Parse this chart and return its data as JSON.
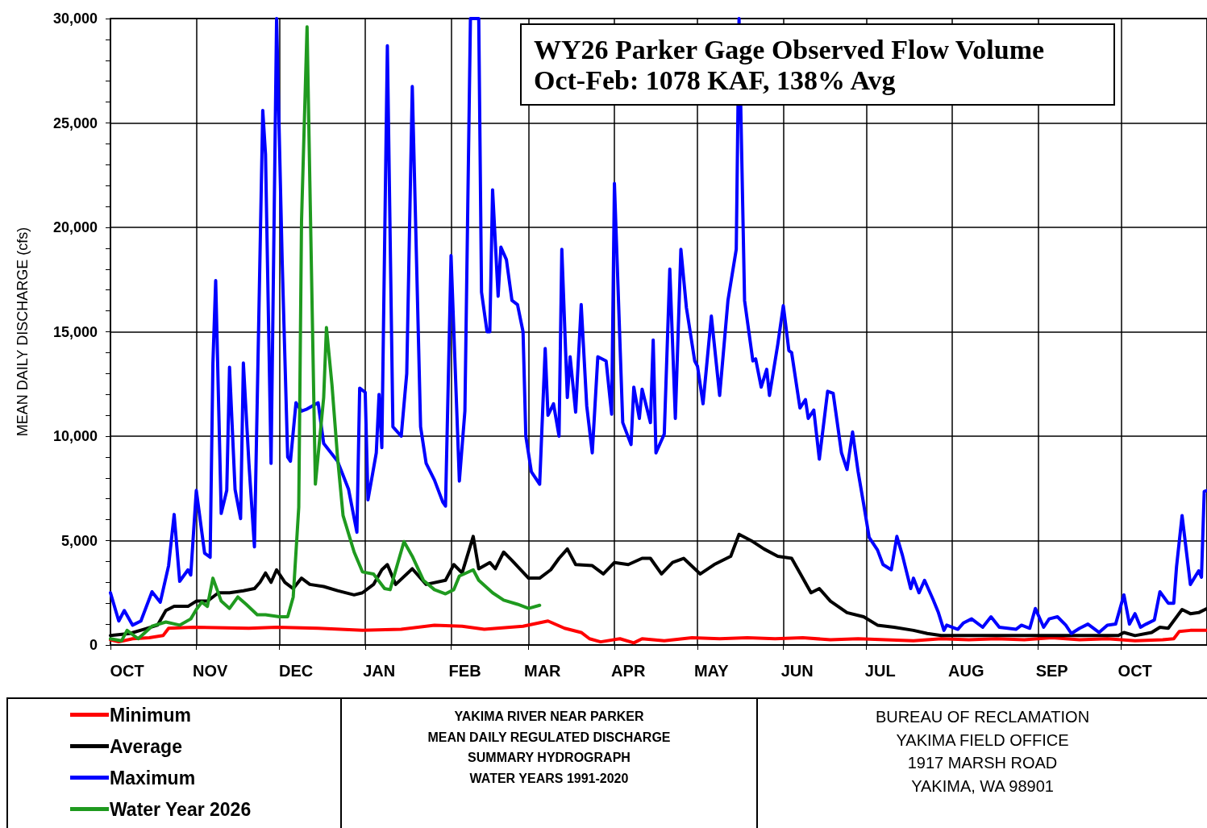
{
  "chart_data": {
    "type": "line",
    "title": "WY26 Parker Gage Observed Flow Volume",
    "subtitle": "Oct-Feb: 1078 KAF, 138% Avg",
    "ylabel": "MEAN DAILY DISCHARGE (cfs)",
    "annotations": [
      "YAKIMA RIVER NEAR PARKER\nMEAN DAILY REGULATED DISCHARGE\nSUMMARY HYDROGRAPH\nWATER YEARS 1991-2020",
      "BUREAU OF RECLAMATION\nYAKIMA FIELD OFFICE\n1917 MARSH ROAD\nYAKIMA, WA  98901"
    ],
    "xlim": [
      "2025-10-01",
      "2026-11-01"
    ],
    "xticks": [
      {
        "value": "2025-10-01",
        "label": null
      },
      {
        "value": "2025-10-07",
        "label": "OCT"
      },
      {
        "value": "2025-11-01",
        "label": null
      },
      {
        "value": "2025-11-06",
        "label": "NOV"
      },
      {
        "value": "2025-12-01",
        "label": null
      },
      {
        "value": "2025-12-07",
        "label": "DEC"
      },
      {
        "value": "2026-01-01",
        "label": null
      },
      {
        "value": "2026-01-06",
        "label": "JAN"
      },
      {
        "value": "2026-02-01",
        "label": null
      },
      {
        "value": "2026-02-06",
        "label": "FEB"
      },
      {
        "value": "2026-03-01",
        "label": null
      },
      {
        "value": "2026-03-06",
        "label": "MAR"
      },
      {
        "value": "2026-04-01",
        "label": null
      },
      {
        "value": "2026-04-06",
        "label": "APR"
      },
      {
        "value": "2026-05-01",
        "label": null
      },
      {
        "value": "2026-05-06",
        "label": "MAY"
      },
      {
        "value": "2026-06-01",
        "label": null
      },
      {
        "value": "2026-06-06",
        "label": "JUN"
      },
      {
        "value": "2026-07-01",
        "label": null
      },
      {
        "value": "2026-07-06",
        "label": "JUL"
      },
      {
        "value": "2026-08-01",
        "label": null
      },
      {
        "value": "2026-08-06",
        "label": "AUG"
      },
      {
        "value": "2026-09-01",
        "label": null
      },
      {
        "value": "2026-09-06",
        "label": "SEP"
      },
      {
        "value": "2026-10-01",
        "label": null
      },
      {
        "value": "2026-10-06",
        "label": "OCT"
      },
      {
        "value": "2026-11-01",
        "label": null
      }
    ],
    "ylim": [
      0,
      30000
    ],
    "yticks": [
      0,
      {
        "value": 1000,
        "label": null
      },
      {
        "value": 2000,
        "label": null
      },
      {
        "value": 3000,
        "label": null
      },
      {
        "value": 4000,
        "label": null
      },
      {
        "value": 5000,
        "label": "5,000"
      },
      {
        "value": 6000,
        "label": null
      },
      {
        "value": 7000,
        "label": null
      },
      {
        "value": 8000,
        "label": null
      },
      {
        "value": 9000,
        "label": null
      },
      {
        "value": 10000,
        "label": "10,000"
      },
      {
        "value": 11000,
        "label": null
      },
      {
        "value": 12000,
        "label": null
      },
      {
        "value": 13000,
        "label": null
      },
      {
        "value": 14000,
        "label": null
      },
      {
        "value": 15000,
        "label": "15,000"
      },
      {
        "value": 16000,
        "label": null
      },
      {
        "value": 17000,
        "label": null
      },
      {
        "value": 18000,
        "label": null
      },
      {
        "value": 19000,
        "label": null
      },
      {
        "value": 20000,
        "label": "20,000"
      },
      {
        "value": 21000,
        "label": null
      },
      {
        "value": 22000,
        "label": null
      },
      {
        "value": 23000,
        "label": null
      },
      {
        "value": 24000,
        "label": null
      },
      {
        "value": 25000,
        "label": "25,000"
      },
      {
        "value": 26000,
        "label": null
      },
      {
        "value": 27000,
        "label": null
      },
      {
        "value": 28000,
        "label": null
      },
      {
        "value": 29000,
        "label": null
      },
      {
        "value": 30000,
        "label": "30,000"
      }
    ],
    "grid": true,
    "legend": "bottom left",
    "marker": "none",
    "series": [
      {
        "name": "Minimum",
        "color": "#ff0000",
        "x": [
          "2025-10-01",
          "2025-10-04",
          "2025-10-09",
          "2025-10-15",
          "2025-10-20",
          "2025-10-22",
          "2025-10-31",
          "2025-11-20",
          "2025-11-30",
          "2025-12-15",
          "2025-12-31",
          "2026-01-14",
          "2026-01-26",
          "2026-02-05",
          "2026-02-13",
          "2026-02-27",
          "2026-03-08",
          "2026-03-14",
          "2026-03-20",
          "2026-03-23",
          "2026-03-27",
          "2026-04-03",
          "2026-04-08",
          "2026-04-11",
          "2026-04-19",
          "2026-04-29",
          "2026-05-09",
          "2026-05-19",
          "2026-05-29",
          "2026-06-08",
          "2026-06-18",
          "2026-06-28",
          "2026-07-08",
          "2026-07-18",
          "2026-07-28",
          "2026-08-07",
          "2026-08-17",
          "2026-08-27",
          "2026-09-06",
          "2026-09-16",
          "2026-09-26",
          "2026-10-06",
          "2026-10-16",
          "2026-10-20",
          "2026-10-22",
          "2026-10-26",
          "2026-11-01"
        ],
        "values": [
          250,
          150,
          300,
          350,
          450,
          800,
          850,
          800,
          850,
          800,
          700,
          750,
          950,
          900,
          750,
          900,
          1150,
          800,
          600,
          300,
          150,
          300,
          100,
          300,
          200,
          350,
          300,
          350,
          300,
          350,
          250,
          300,
          250,
          200,
          300,
          250,
          300,
          250,
          350,
          250,
          300,
          200,
          250,
          300,
          650,
          700,
          700
        ]
      },
      {
        "name": "Average",
        "color": "#000000",
        "x": [
          "2025-10-01",
          "2025-10-08",
          "2025-10-13",
          "2025-10-18",
          "2025-10-21",
          "2025-10-24",
          "2025-10-29",
          "2025-11-01",
          "2025-11-05",
          "2025-11-09",
          "2025-11-13",
          "2025-11-18",
          "2025-11-22",
          "2025-11-24",
          "2025-11-26",
          "2025-11-28",
          "2025-11-30",
          "2025-12-03",
          "2025-12-06",
          "2025-12-09",
          "2025-12-12",
          "2025-12-17",
          "2025-12-22",
          "2025-12-28",
          "2025-12-31",
          "2026-01-04",
          "2026-01-07",
          "2026-01-09",
          "2026-01-12",
          "2026-01-18",
          "2026-01-23",
          "2026-01-30",
          "2026-02-02",
          "2026-02-05",
          "2026-02-09",
          "2026-02-11",
          "2026-02-15",
          "2026-02-17",
          "2026-02-20",
          "2026-02-23",
          "2026-03-01",
          "2026-03-05",
          "2026-03-09",
          "2026-03-12",
          "2026-03-15",
          "2026-03-18",
          "2026-03-24",
          "2026-03-28",
          "2026-04-01",
          "2026-04-06",
          "2026-04-11",
          "2026-04-14",
          "2026-04-18",
          "2026-04-22",
          "2026-04-26",
          "2026-05-02",
          "2026-05-07",
          "2026-05-13",
          "2026-05-16",
          "2026-05-21",
          "2026-05-25",
          "2026-05-30",
          "2026-06-04",
          "2026-06-07",
          "2026-06-11",
          "2026-06-14",
          "2026-06-18",
          "2026-06-24",
          "2026-06-30",
          "2026-07-05",
          "2026-07-11",
          "2026-07-18",
          "2026-07-23",
          "2026-07-28",
          "2026-08-17",
          "2026-09-06",
          "2026-09-30",
          "2026-10-02",
          "2026-10-06",
          "2026-10-12",
          "2026-10-15",
          "2026-10-18",
          "2026-10-23",
          "2026-10-26",
          "2026-10-29",
          "2026-11-01"
        ],
        "values": [
          450,
          550,
          750,
          950,
          1650,
          1850,
          1850,
          2100,
          2100,
          2500,
          2500,
          2600,
          2700,
          3000,
          3450,
          3000,
          3600,
          3000,
          2700,
          3200,
          2900,
          2800,
          2600,
          2400,
          2500,
          2900,
          3600,
          3850,
          2900,
          3650,
          2900,
          3100,
          3850,
          3450,
          5200,
          3650,
          3950,
          3650,
          4450,
          4050,
          3200,
          3200,
          3600,
          4150,
          4600,
          3850,
          3800,
          3400,
          3950,
          3850,
          4150,
          4150,
          3400,
          3950,
          4150,
          3400,
          3850,
          4250,
          5300,
          4950,
          4600,
          4250,
          4150,
          3450,
          2500,
          2700,
          2100,
          1550,
          1350,
          950,
          850,
          700,
          550,
          450,
          450,
          450,
          450,
          600,
          450,
          600,
          850,
          800,
          1700,
          1500,
          1550,
          1750
        ]
      },
      {
        "name": "Maximum",
        "color": "#0000ff",
        "x": [
          "2025-10-01",
          "2025-10-04",
          "2025-10-06",
          "2025-10-09",
          "2025-10-12",
          "2025-10-16",
          "2025-10-19",
          "2025-10-22",
          "2025-10-24",
          "2025-10-26",
          "2025-10-29",
          "2025-10-30",
          "2025-11-01",
          "2025-11-04",
          "2025-11-06",
          "2025-11-07",
          "2025-11-08",
          "2025-11-10",
          "2025-11-12",
          "2025-11-13",
          "2025-11-15",
          "2025-11-17",
          "2025-11-18",
          "2025-11-20",
          "2025-11-22",
          "2025-11-25",
          "2025-11-26",
          "2025-11-28",
          "2025-11-30",
          "2025-12-02",
          "2025-12-04",
          "2025-12-05",
          "2025-12-07",
          "2025-12-09",
          "2025-12-11",
          "2025-12-15",
          "2025-12-17",
          "2025-12-22",
          "2025-12-26",
          "2025-12-29",
          "2025-12-30",
          "2026-01-01",
          "2026-01-02",
          "2026-01-05",
          "2026-01-06",
          "2026-01-07",
          "2026-01-09",
          "2026-01-11",
          "2026-01-14",
          "2026-01-16",
          "2026-01-18",
          "2026-01-21",
          "2026-01-23",
          "2026-01-26",
          "2026-01-29",
          "2026-01-30",
          "2026-02-01",
          "2026-02-04",
          "2026-02-06",
          "2026-02-08",
          "2026-02-11",
          "2026-02-12",
          "2026-02-14",
          "2026-02-15",
          "2026-02-16",
          "2026-02-18",
          "2026-02-19",
          "2026-02-21",
          "2026-02-23",
          "2026-02-25",
          "2026-02-27",
          "2026-02-28",
          "2026-03-02",
          "2026-03-05",
          "2026-03-07",
          "2026-03-08",
          "2026-03-10",
          "2026-03-12",
          "2026-03-13",
          "2026-03-15",
          "2026-03-16",
          "2026-03-18",
          "2026-03-20",
          "2026-03-22",
          "2026-03-24",
          "2026-03-26",
          "2026-03-29",
          "2026-03-31",
          "2026-04-01",
          "2026-04-04",
          "2026-04-07",
          "2026-04-08",
          "2026-04-10",
          "2026-04-11",
          "2026-04-14",
          "2026-04-15",
          "2026-04-16",
          "2026-04-19",
          "2026-04-21",
          "2026-04-23",
          "2026-04-25",
          "2026-04-27",
          "2026-04-30",
          "2026-05-01",
          "2026-05-03",
          "2026-05-06",
          "2026-05-09",
          "2026-05-12",
          "2026-05-15",
          "2026-05-16",
          "2026-05-18",
          "2026-05-21",
          "2026-05-22",
          "2026-05-24",
          "2026-05-26",
          "2026-05-27",
          "2026-05-30",
          "2026-06-01",
          "2026-06-03",
          "2026-06-04",
          "2026-06-07",
          "2026-06-09",
          "2026-06-10",
          "2026-06-12",
          "2026-06-14",
          "2026-06-17",
          "2026-06-19",
          "2026-06-22",
          "2026-06-24",
          "2026-06-26",
          "2026-06-28",
          "2026-06-30",
          "2026-07-02",
          "2026-07-05",
          "2026-07-07",
          "2026-07-10",
          "2026-07-12",
          "2026-07-14",
          "2026-07-17",
          "2026-07-18",
          "2026-07-20",
          "2026-07-22",
          "2026-07-25",
          "2026-07-27",
          "2026-07-29",
          "2026-07-30",
          "2026-08-03",
          "2026-08-05",
          "2026-08-08",
          "2026-08-12",
          "2026-08-15",
          "2026-08-18",
          "2026-08-24",
          "2026-08-26",
          "2026-08-29",
          "2026-08-31",
          "2026-09-03",
          "2026-09-05",
          "2026-09-08",
          "2026-09-11",
          "2026-09-13",
          "2026-09-16",
          "2026-09-19",
          "2026-09-23",
          "2026-09-26",
          "2026-09-29",
          "2026-10-02",
          "2026-10-04",
          "2026-10-06",
          "2026-10-08",
          "2026-10-10",
          "2026-10-13",
          "2026-10-15",
          "2026-10-18",
          "2026-10-20",
          "2026-10-21",
          "2026-10-23",
          "2026-10-26",
          "2026-10-29",
          "2026-10-30",
          "2026-10-31",
          "2026-11-01"
        ],
        "values": [
          2500,
          1150,
          1650,
          950,
          1150,
          2550,
          2050,
          3800,
          6250,
          3050,
          3600,
          3350,
          7400,
          4400,
          4200,
          13500,
          17450,
          6300,
          7400,
          13300,
          7450,
          6050,
          13500,
          8700,
          4700,
          25600,
          23500,
          8700,
          30000,
          18450,
          9000,
          8800,
          11600,
          11200,
          11300,
          11600,
          9650,
          8800,
          7450,
          5400,
          12300,
          12100,
          6950,
          9200,
          12000,
          9450,
          28700,
          10450,
          10000,
          13000,
          26750,
          10450,
          8700,
          7900,
          6850,
          6650,
          18650,
          7850,
          11200,
          30000,
          30000,
          16900,
          15000,
          15000,
          21800,
          16700,
          19050,
          18450,
          16500,
          16300,
          15000,
          10000,
          8300,
          7700,
          14200,
          11000,
          11550,
          10000,
          18950,
          11850,
          13800,
          11150,
          16300,
          11450,
          9200,
          13800,
          13600,
          11050,
          22100,
          10650,
          9600,
          12350,
          10850,
          12250,
          10650,
          14600,
          9200,
          10100,
          18000,
          10850,
          18950,
          16150,
          13600,
          13350,
          11550,
          15750,
          11950,
          16500,
          18950,
          30000,
          16500,
          13600,
          13700,
          12350,
          13200,
          11950,
          14400,
          16250,
          14100,
          14000,
          11350,
          11750,
          10850,
          11250,
          8900,
          12150,
          12050,
          9200,
          8400,
          10200,
          8300,
          6750,
          5150,
          4550,
          3850,
          3600,
          5200,
          4300,
          2700,
          3200,
          2500,
          3100,
          2200,
          1550,
          700,
          950,
          750,
          1050,
          1250,
          850,
          1350,
          850,
          750,
          950,
          800,
          1750,
          850,
          1250,
          1350,
          950,
          550,
          800,
          1000,
          600,
          950,
          1000,
          2400,
          1000,
          1500,
          850,
          1000,
          1200,
          2550,
          2000,
          2000,
          3750,
          6200,
          2900,
          3550,
          3250,
          7350,
          7400
        ]
      },
      {
        "name": "Water Year 2026",
        "color": "#1f9a1f",
        "x": [
          "2025-10-01",
          "2025-10-05",
          "2025-10-07",
          "2025-10-11",
          "2025-10-16",
          "2025-10-21",
          "2025-10-26",
          "2025-10-30",
          "2025-11-01",
          "2025-11-03",
          "2025-11-05",
          "2025-11-07",
          "2025-11-10",
          "2025-11-13",
          "2025-11-16",
          "2025-11-19",
          "2025-11-23",
          "2025-11-26",
          "2025-12-01",
          "2025-12-04",
          "2025-12-06",
          "2025-12-08",
          "2025-12-09",
          "2025-12-11",
          "2025-12-12",
          "2025-12-14",
          "2025-12-17",
          "2025-12-18",
          "2025-12-20",
          "2025-12-22",
          "2025-12-24",
          "2025-12-28",
          "2025-12-31",
          "2026-01-04",
          "2026-01-08",
          "2026-01-10",
          "2026-01-15",
          "2026-01-18",
          "2026-01-22",
          "2026-01-26",
          "2026-01-30",
          "2026-02-02",
          "2026-02-04",
          "2026-02-09",
          "2026-02-11",
          "2026-02-16",
          "2026-02-20",
          "2026-02-25",
          "2026-03-01",
          "2026-03-05"
        ],
        "values": [
          300,
          200,
          700,
          300,
          900,
          1100,
          950,
          1250,
          1700,
          2050,
          1850,
          3200,
          2100,
          1750,
          2300,
          1950,
          1450,
          1450,
          1350,
          1350,
          2300,
          6600,
          20300,
          29600,
          22200,
          7700,
          11850,
          15200,
          12450,
          9000,
          6200,
          4450,
          3500,
          3400,
          2700,
          2650,
          4950,
          4250,
          3100,
          2650,
          2450,
          2650,
          3300,
          3600,
          3100,
          2500,
          2150,
          1950,
          1750,
          1900
        ]
      }
    ]
  }
}
